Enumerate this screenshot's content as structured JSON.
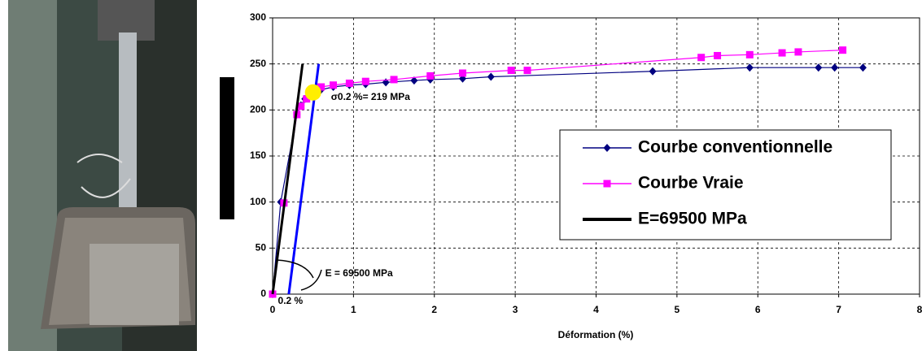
{
  "chart_data": {
    "type": "line",
    "xlabel": "Déformation (%)",
    "xlim": [
      0,
      8
    ],
    "xticks": [
      0,
      1,
      2,
      3,
      4,
      5,
      6,
      7,
      8
    ],
    "ylim": [
      0,
      300
    ],
    "yticks": [
      0,
      50,
      100,
      150,
      200,
      250,
      300
    ],
    "grid": true,
    "legend": "right",
    "series": [
      {
        "name": "Courbe conventionnelle",
        "color": "#000080",
        "marker": "diamond",
        "x": [
          0,
          0.1,
          0.3,
          0.35,
          0.4,
          0.5,
          0.6,
          0.75,
          0.95,
          1.15,
          1.4,
          1.75,
          1.95,
          2.35,
          2.7,
          4.7,
          5.9,
          6.75,
          6.95,
          7.3
        ],
        "values": [
          0,
          100,
          195,
          205,
          212,
          220,
          222,
          225,
          227,
          228,
          230,
          232,
          233,
          234,
          236,
          242,
          246,
          246,
          246,
          246
        ]
      },
      {
        "name": "Courbe Vraie",
        "color": "#ff00ff",
        "marker": "square",
        "x": [
          0,
          0.14,
          0.3,
          0.35,
          0.42,
          0.6,
          0.75,
          0.95,
          1.15,
          1.5,
          1.95,
          2.35,
          2.95,
          3.15,
          5.3,
          5.5,
          5.9,
          6.3,
          6.5,
          7.05
        ],
        "values": [
          0,
          99,
          195,
          204,
          212,
          225,
          227,
          229,
          231,
          233,
          237,
          240,
          243,
          243,
          257,
          259,
          260,
          262,
          263,
          265
        ]
      },
      {
        "name": "E=69500 MPa",
        "color": "#000000",
        "marker": "none",
        "x": [
          0,
          0.37
        ],
        "values": [
          0,
          250
        ]
      }
    ],
    "offset_line": {
      "color": "#0000ff",
      "x": [
        0.2,
        0.57
      ],
      "values": [
        0,
        250
      ]
    },
    "yield_point": {
      "x": 0.5,
      "value": 219,
      "color": "#ffee00",
      "label": "σ0.2 %= 219 MPa"
    },
    "annotations": [
      {
        "text": "E = 69500 MPa",
        "x": 0.65,
        "y": 22
      },
      {
        "text": "0.2 %",
        "x": 0.22,
        "y": -8
      }
    ]
  }
}
